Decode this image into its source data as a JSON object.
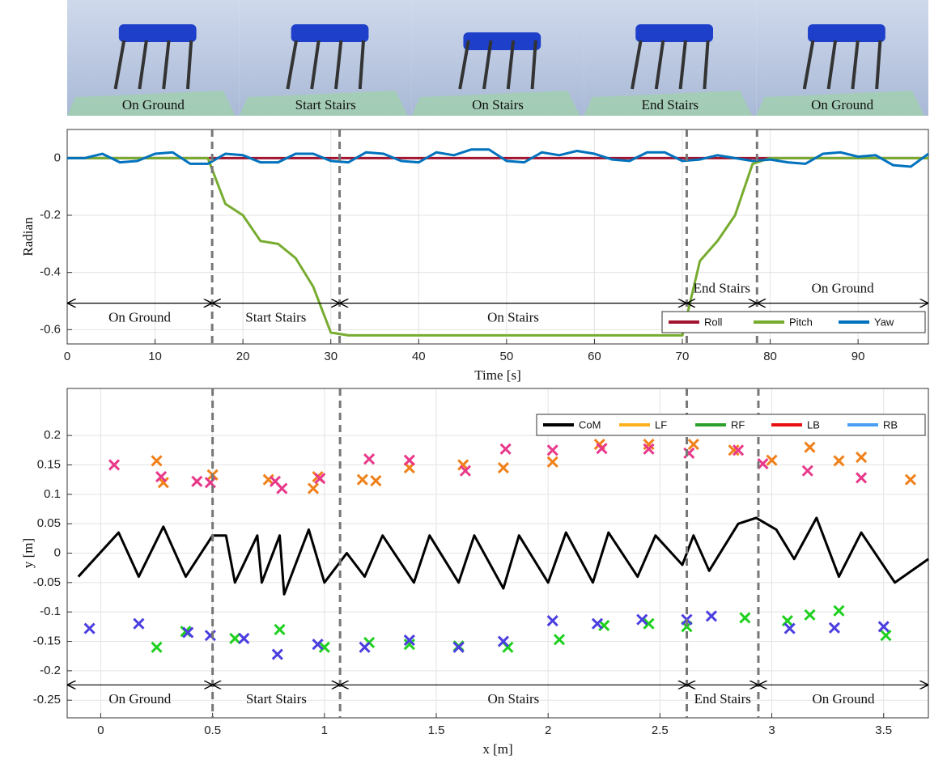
{
  "images": {
    "labels": [
      "On Ground",
      "Start Stairs",
      "On Stairs",
      "End Stairs",
      "On Ground"
    ]
  },
  "chart_data": [
    {
      "type": "line",
      "ylabel": "Radian",
      "xlabel": "Time [s]",
      "xlim": [
        0,
        98
      ],
      "ylim": [
        -0.65,
        0.1
      ],
      "xticks": [
        0,
        10,
        20,
        30,
        40,
        50,
        60,
        70,
        80,
        90
      ],
      "yticks": [
        -0.6,
        -0.4,
        -0.2,
        0
      ],
      "grid": true,
      "legend": "lower right",
      "x": [
        0,
        2,
        4,
        6,
        8,
        10,
        12,
        14,
        16,
        18,
        20,
        22,
        24,
        26,
        28,
        30,
        32,
        34,
        36,
        38,
        40,
        42,
        44,
        46,
        48,
        50,
        52,
        54,
        56,
        58,
        60,
        62,
        64,
        66,
        68,
        70,
        72,
        74,
        76,
        78,
        80,
        82,
        84,
        86,
        88,
        90,
        92,
        94,
        96,
        98
      ],
      "series": [
        {
          "name": "Roll",
          "color": "#a2142f",
          "values": [
            0,
            0,
            0,
            0,
            0,
            0,
            0,
            0,
            0,
            0,
            0,
            0,
            0,
            0,
            0,
            0,
            0,
            0,
            0,
            0,
            0,
            0,
            0,
            0,
            0,
            0,
            0,
            0,
            0,
            0,
            0,
            0,
            0,
            0,
            0,
            0,
            0,
            0,
            0,
            0,
            0,
            0,
            0,
            0,
            0,
            0,
            0,
            0,
            0,
            0
          ]
        },
        {
          "name": "Pitch",
          "color": "#77ac30",
          "values": [
            0,
            0,
            0,
            0,
            0,
            0,
            0,
            0,
            0,
            -0.16,
            -0.2,
            -0.29,
            -0.3,
            -0.35,
            -0.45,
            -0.61,
            -0.62,
            -0.62,
            -0.62,
            -0.62,
            -0.62,
            -0.62,
            -0.62,
            -0.62,
            -0.62,
            -0.62,
            -0.62,
            -0.62,
            -0.62,
            -0.62,
            -0.62,
            -0.62,
            -0.62,
            -0.62,
            -0.62,
            -0.62,
            -0.36,
            -0.29,
            -0.2,
            -0.02,
            0,
            0,
            0,
            0,
            0,
            0,
            0,
            0,
            0,
            0
          ]
        },
        {
          "name": "Yaw",
          "color": "#0072bd",
          "values": [
            0,
            0,
            0.015,
            -0.015,
            -0.01,
            0.015,
            0.02,
            -0.02,
            -0.02,
            0.015,
            0.01,
            -0.015,
            -0.015,
            0.015,
            0.015,
            -0.01,
            -0.015,
            0.02,
            0.015,
            -0.01,
            -0.015,
            0.02,
            0.01,
            0.03,
            0.03,
            -0.01,
            -0.015,
            0.02,
            0.01,
            0.025,
            0.015,
            -0.005,
            -0.01,
            0.02,
            0.02,
            -0.01,
            -0.005,
            0.01,
            0,
            -0.01,
            -0.005,
            -0.015,
            -0.02,
            0.015,
            0.02,
            0.005,
            0.01,
            -0.025,
            -0.03,
            0.015
          ]
        }
      ],
      "boundaries": [
        16.5,
        31,
        70.5,
        78.5
      ],
      "phases": [
        {
          "text": "On Ground",
          "start": 0,
          "end": 16.5
        },
        {
          "text": "Start Stairs",
          "start": 16.5,
          "end": 31
        },
        {
          "text": "On Stairs",
          "start": 31,
          "end": 70.5
        },
        {
          "text": "End Stairs",
          "start": 70.5,
          "end": 78.5
        },
        {
          "text": "On Ground",
          "start": 78.5,
          "end": 98
        }
      ]
    },
    {
      "type": "line",
      "ylabel": "y [m]",
      "xlabel": "x [m]",
      "xlim": [
        -0.15,
        3.7
      ],
      "ylim": [
        -0.28,
        0.28
      ],
      "xticks": [
        0,
        0.5,
        1,
        1.5,
        2,
        2.5,
        3,
        3.5
      ],
      "yticks": [
        -0.25,
        -0.2,
        -0.15,
        -0.1,
        -0.05,
        0,
        0.05,
        0.1,
        0.15,
        0.2
      ],
      "grid": true,
      "legend": "upper right",
      "series": [
        {
          "name": "CoM",
          "color": "#000000",
          "x": [
            -0.1,
            0.08,
            0.17,
            0.28,
            0.38,
            0.5,
            0.56,
            0.6,
            0.7,
            0.72,
            0.8,
            0.82,
            0.93,
            1.0,
            1.1,
            1.18,
            1.26,
            1.4,
            1.47,
            1.6,
            1.67,
            1.8,
            1.87,
            2.0,
            2.08,
            2.2,
            2.27,
            2.4,
            2.48,
            2.6,
            2.65,
            2.72,
            2.85,
            2.93,
            3.02,
            3.1,
            3.2,
            3.3,
            3.4,
            3.55,
            3.7
          ],
          "values": [
            -0.04,
            0.035,
            -0.04,
            0.045,
            -0.04,
            0.03,
            0.03,
            -0.05,
            0.03,
            -0.05,
            0.03,
            -0.07,
            0.04,
            -0.05,
            0,
            -0.04,
            0.03,
            -0.05,
            0.03,
            -0.05,
            0.03,
            -0.06,
            0.03,
            -0.05,
            0.035,
            -0.05,
            0.035,
            -0.04,
            0.03,
            -0.02,
            0.03,
            -0.03,
            0.05,
            0.06,
            0.04,
            -0.01,
            0.06,
            -0.04,
            0.035,
            -0.05,
            -0.01
          ]
        },
        {
          "name": "LF",
          "color": "#ffb01f",
          "marker": "x",
          "marker_color": "#f0801a",
          "x": [
            0.25,
            0.28,
            0.5,
            0.75,
            0.95,
            0.97,
            1.17,
            1.23,
            1.38,
            1.62,
            1.8,
            2.02,
            2.23,
            2.45,
            2.65,
            2.83,
            3.0,
            3.17,
            3.3,
            3.4,
            3.62
          ],
          "values": [
            0.157,
            0.12,
            0.133,
            0.125,
            0.11,
            0.13,
            0.125,
            0.123,
            0.145,
            0.15,
            0.145,
            0.155,
            0.185,
            0.185,
            0.185,
            0.175,
            0.158,
            0.18,
            0.157,
            0.163,
            0.125
          ]
        },
        {
          "name": "RF",
          "color": "#2ca02c",
          "marker": "x",
          "marker_color": "#1fd01f",
          "x": [
            0.25,
            0.38,
            0.6,
            0.8,
            1.0,
            1.2,
            1.38,
            1.6,
            1.82,
            2.05,
            2.25,
            2.45,
            2.62,
            2.88,
            3.07,
            3.17,
            3.3,
            3.51
          ],
          "values": [
            -0.16,
            -0.133,
            -0.145,
            -0.13,
            -0.16,
            -0.152,
            -0.155,
            -0.158,
            -0.16,
            -0.147,
            -0.123,
            -0.12,
            -0.125,
            -0.11,
            -0.115,
            -0.105,
            -0.098,
            -0.14
          ]
        },
        {
          "name": "LB",
          "color": "#e81010",
          "marker": "x",
          "marker_color": "#e8388a",
          "x": [
            0.06,
            0.27,
            0.43,
            0.49,
            0.78,
            0.81,
            0.98,
            1.2,
            1.38,
            1.63,
            1.81,
            2.02,
            2.24,
            2.45,
            2.63,
            2.85,
            2.96,
            3.16,
            3.4
          ],
          "values": [
            0.15,
            0.13,
            0.122,
            0.12,
            0.122,
            0.11,
            0.127,
            0.16,
            0.158,
            0.14,
            0.177,
            0.175,
            0.178,
            0.177,
            0.17,
            0.175,
            0.152,
            0.14,
            0.128
          ]
        },
        {
          "name": "RB",
          "color": "#4a9ff5",
          "marker": "x",
          "marker_color": "#4b3ee0",
          "x": [
            -0.05,
            0.17,
            0.39,
            0.49,
            0.64,
            0.79,
            0.97,
            1.18,
            1.38,
            1.6,
            1.8,
            2.02,
            2.22,
            2.42,
            2.62,
            2.73,
            3.08,
            3.28,
            3.5
          ],
          "values": [
            -0.128,
            -0.12,
            -0.135,
            -0.14,
            -0.145,
            -0.172,
            -0.155,
            -0.16,
            -0.148,
            -0.16,
            -0.15,
            -0.115,
            -0.12,
            -0.113,
            -0.113,
            -0.107,
            -0.128,
            -0.127,
            -0.125
          ]
        }
      ],
      "boundaries": [
        0.5,
        1.07,
        2.62,
        2.94
      ],
      "phases": [
        {
          "text": "On Ground",
          "start": -0.15,
          "end": 0.5
        },
        {
          "text": "Start Stairs",
          "start": 0.5,
          "end": 1.07
        },
        {
          "text": "On Stairs",
          "start": 1.07,
          "end": 2.62
        },
        {
          "text": "End Stairs",
          "start": 2.62,
          "end": 2.94
        },
        {
          "text": "On Ground",
          "start": 2.94,
          "end": 3.7
        }
      ]
    }
  ]
}
